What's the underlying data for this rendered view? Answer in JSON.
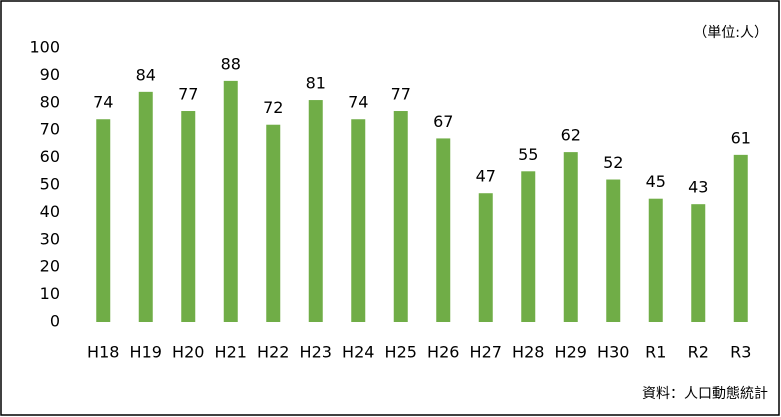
{
  "chart_data": {
    "type": "bar",
    "categories": [
      "H18",
      "H19",
      "H20",
      "H21",
      "H22",
      "H23",
      "H24",
      "H25",
      "H26",
      "H27",
      "H28",
      "H29",
      "H30",
      "R1",
      "R2",
      "R3"
    ],
    "values": [
      74,
      84,
      77,
      88,
      72,
      81,
      74,
      77,
      67,
      47,
      55,
      62,
      52,
      45,
      43,
      61
    ],
    "color": "#70ad47",
    "ylim": [
      0,
      100
    ],
    "yticks": [
      0,
      10,
      20,
      30,
      40,
      50,
      60,
      70,
      80,
      90,
      100
    ],
    "grid": false,
    "unit_note": "（単位:人）",
    "source": "資料：人口動態統計"
  }
}
